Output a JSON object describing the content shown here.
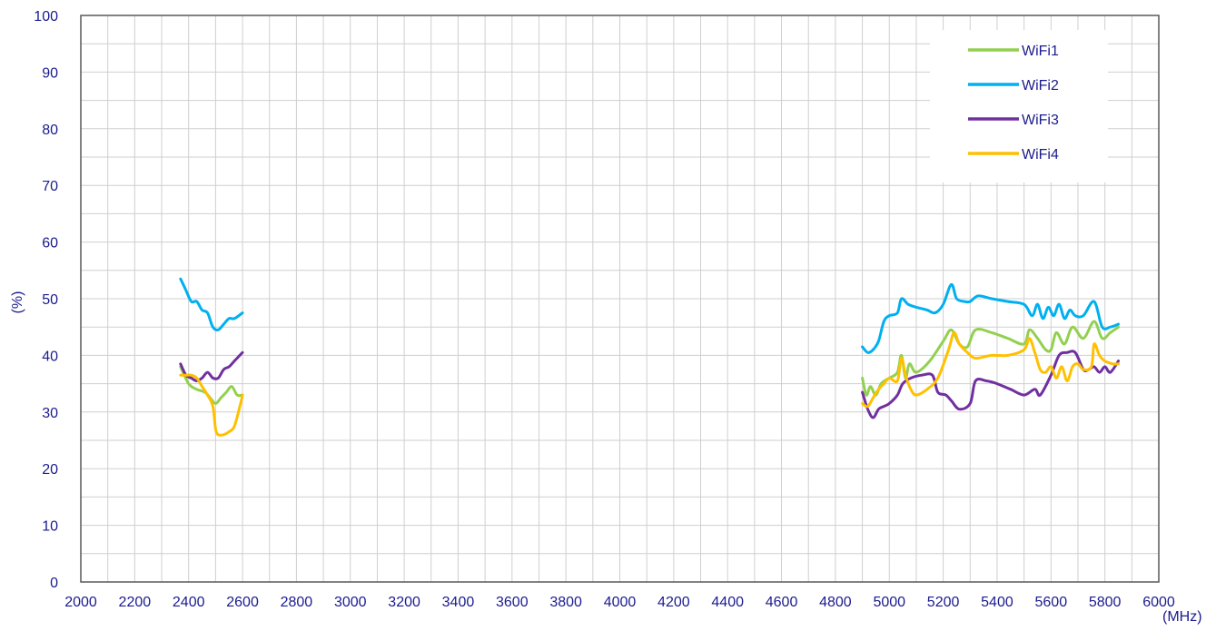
{
  "chart_data": {
    "type": "line",
    "title": "",
    "xlabel": "(MHz)",
    "ylabel": "(%)",
    "xlim": [
      2000,
      6000
    ],
    "ylim": [
      0,
      100
    ],
    "xticks": [
      2000,
      2200,
      2400,
      2600,
      2800,
      3000,
      3200,
      3400,
      3600,
      3800,
      4000,
      4200,
      4400,
      4600,
      4800,
      5000,
      5200,
      5400,
      5600,
      5800,
      6000
    ],
    "yticks": [
      0,
      10,
      20,
      30,
      40,
      50,
      60,
      70,
      80,
      90,
      100
    ],
    "grid": true,
    "legend_position": "top-right",
    "series": [
      {
        "name": "WiFi1",
        "color": "#92d050",
        "segments": [
          [
            [
              2370,
              38
            ],
            [
              2400,
              35
            ],
            [
              2430,
              34
            ],
            [
              2460,
              33.5
            ],
            [
              2480,
              32.5
            ],
            [
              2500,
              31.5
            ],
            [
              2520,
              32.5
            ],
            [
              2540,
              33.5
            ],
            [
              2560,
              34.5
            ],
            [
              2580,
              33
            ],
            [
              2600,
              33
            ]
          ],
          [
            [
              4900,
              36
            ],
            [
              4915,
              33
            ],
            [
              4930,
              34.5
            ],
            [
              4950,
              33
            ],
            [
              4970,
              35
            ],
            [
              5000,
              36
            ],
            [
              5030,
              37
            ],
            [
              5045,
              40
            ],
            [
              5060,
              36
            ],
            [
              5075,
              38.5
            ],
            [
              5100,
              37
            ],
            [
              5150,
              39
            ],
            [
              5200,
              42.5
            ],
            [
              5230,
              44.5
            ],
            [
              5260,
              42
            ],
            [
              5290,
              41.5
            ],
            [
              5320,
              44.5
            ],
            [
              5380,
              44
            ],
            [
              5440,
              43
            ],
            [
              5500,
              42
            ],
            [
              5520,
              44.5
            ],
            [
              5550,
              43
            ],
            [
              5580,
              41
            ],
            [
              5600,
              41
            ],
            [
              5620,
              44
            ],
            [
              5650,
              42
            ],
            [
              5680,
              45
            ],
            [
              5720,
              43
            ],
            [
              5760,
              46
            ],
            [
              5790,
              43
            ],
            [
              5820,
              44
            ],
            [
              5850,
              45
            ]
          ]
        ]
      },
      {
        "name": "WiFi2",
        "color": "#00b0f0",
        "segments": [
          [
            [
              2370,
              53.5
            ],
            [
              2390,
              51.5
            ],
            [
              2410,
              49.5
            ],
            [
              2430,
              49.5
            ],
            [
              2450,
              48
            ],
            [
              2470,
              47.5
            ],
            [
              2490,
              45
            ],
            [
              2510,
              44.5
            ],
            [
              2530,
              45.5
            ],
            [
              2550,
              46.5
            ],
            [
              2570,
              46.5
            ],
            [
              2600,
              47.5
            ]
          ],
          [
            [
              4900,
              41.5
            ],
            [
              4920,
              40.5
            ],
            [
              4940,
              41
            ],
            [
              4960,
              42.5
            ],
            [
              4980,
              46
            ],
            [
              5000,
              47
            ],
            [
              5030,
              47.5
            ],
            [
              5045,
              50
            ],
            [
              5070,
              49
            ],
            [
              5100,
              48.5
            ],
            [
              5140,
              48
            ],
            [
              5170,
              47.5
            ],
            [
              5200,
              49
            ],
            [
              5230,
              52.5
            ],
            [
              5250,
              50
            ],
            [
              5280,
              49.5
            ],
            [
              5300,
              49.5
            ],
            [
              5330,
              50.5
            ],
            [
              5380,
              50
            ],
            [
              5440,
              49.5
            ],
            [
              5500,
              49
            ],
            [
              5530,
              47
            ],
            [
              5550,
              49
            ],
            [
              5570,
              46.5
            ],
            [
              5590,
              48.5
            ],
            [
              5610,
              47
            ],
            [
              5630,
              49
            ],
            [
              5650,
              46.5
            ],
            [
              5670,
              48
            ],
            [
              5690,
              47
            ],
            [
              5720,
              47
            ],
            [
              5760,
              49.5
            ],
            [
              5790,
              45
            ],
            [
              5820,
              45
            ],
            [
              5850,
              45.5
            ]
          ]
        ]
      },
      {
        "name": "WiFi3",
        "color": "#7030a0",
        "segments": [
          [
            [
              2370,
              38.5
            ],
            [
              2390,
              36.5
            ],
            [
              2410,
              36
            ],
            [
              2430,
              35.5
            ],
            [
              2450,
              36
            ],
            [
              2470,
              37
            ],
            [
              2490,
              36
            ],
            [
              2510,
              36
            ],
            [
              2530,
              37.5
            ],
            [
              2550,
              38
            ],
            [
              2570,
              39
            ],
            [
              2600,
              40.5
            ]
          ],
          [
            [
              4900,
              33.5
            ],
            [
              4920,
              30.5
            ],
            [
              4940,
              29
            ],
            [
              4960,
              30.5
            ],
            [
              4980,
              31
            ],
            [
              5000,
              31.5
            ],
            [
              5030,
              33
            ],
            [
              5050,
              35
            ],
            [
              5080,
              36
            ],
            [
              5120,
              36.5
            ],
            [
              5160,
              36.5
            ],
            [
              5180,
              33.5
            ],
            [
              5210,
              33
            ],
            [
              5230,
              32
            ],
            [
              5260,
              30.5
            ],
            [
              5300,
              31.5
            ],
            [
              5320,
              35.5
            ],
            [
              5360,
              35.5
            ],
            [
              5400,
              35
            ],
            [
              5450,
              34
            ],
            [
              5500,
              33
            ],
            [
              5540,
              34
            ],
            [
              5560,
              33
            ],
            [
              5600,
              36.5
            ],
            [
              5630,
              40
            ],
            [
              5660,
              40.5
            ],
            [
              5690,
              40.5
            ],
            [
              5720,
              37.5
            ],
            [
              5740,
              37.5
            ],
            [
              5760,
              38
            ],
            [
              5780,
              37
            ],
            [
              5800,
              38
            ],
            [
              5820,
              37
            ],
            [
              5850,
              39
            ]
          ]
        ]
      },
      {
        "name": "WiFi4",
        "color": "#ffc000",
        "segments": [
          [
            [
              2370,
              36.5
            ],
            [
              2390,
              36.5
            ],
            [
              2410,
              36.5
            ],
            [
              2430,
              36
            ],
            [
              2450,
              34.5
            ],
            [
              2470,
              33
            ],
            [
              2490,
              31
            ],
            [
              2500,
              27
            ],
            [
              2510,
              26
            ],
            [
              2530,
              26
            ],
            [
              2550,
              26.5
            ],
            [
              2570,
              27.5
            ],
            [
              2590,
              31
            ],
            [
              2600,
              33
            ]
          ],
          [
            [
              4900,
              31.5
            ],
            [
              4920,
              31
            ],
            [
              4940,
              32.5
            ],
            [
              4960,
              34
            ],
            [
              4980,
              35
            ],
            [
              5000,
              36
            ],
            [
              5030,
              35.5
            ],
            [
              5045,
              39.5
            ],
            [
              5060,
              36.5
            ],
            [
              5080,
              34
            ],
            [
              5100,
              33
            ],
            [
              5140,
              34
            ],
            [
              5180,
              36
            ],
            [
              5220,
              41
            ],
            [
              5240,
              44
            ],
            [
              5260,
              42
            ],
            [
              5290,
              40.5
            ],
            [
              5320,
              39.5
            ],
            [
              5380,
              40
            ],
            [
              5440,
              40
            ],
            [
              5500,
              41
            ],
            [
              5520,
              43
            ],
            [
              5540,
              40.5
            ],
            [
              5560,
              37.5
            ],
            [
              5580,
              37
            ],
            [
              5600,
              38
            ],
            [
              5620,
              36
            ],
            [
              5640,
              38
            ],
            [
              5660,
              35.5
            ],
            [
              5680,
              38
            ],
            [
              5700,
              38.5
            ],
            [
              5720,
              37.5
            ],
            [
              5750,
              38
            ],
            [
              5760,
              42
            ],
            [
              5780,
              40
            ],
            [
              5800,
              39
            ],
            [
              5830,
              38.5
            ],
            [
              5850,
              38.5
            ]
          ]
        ]
      }
    ]
  }
}
